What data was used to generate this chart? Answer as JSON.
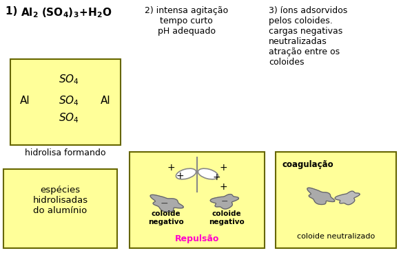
{
  "bg_color": "#ffffff",
  "yellow_box_color": "#ffff99",
  "box_edge_color": "#666600",
  "title2": "2) intensa agitação\ntempo curto\npH adequado",
  "title3": "3) íons adsorvidos\npelos coloides.\ncargas negativas\nneutralizadas\natração entre os\ncoloides",
  "box1_label": "hidrolisa formando",
  "box2_text": "espécies\nhidrolisadas\ndo alumínio",
  "box3_label1": "coloide\nnegativo",
  "box3_label2": "coloide\nnegativo",
  "box3_repulsao": "Repulsão",
  "box4_title": "coagulação",
  "box4_label": "coloide neutralizado",
  "text_color": "#000000",
  "repulsao_color": "#ff00cc",
  "gray_colloid": "#aaaaaa"
}
